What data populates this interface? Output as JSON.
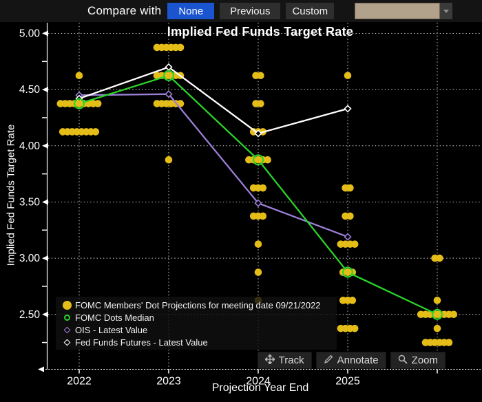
{
  "toolbar": {
    "compare_label": "Compare with",
    "buttons": [
      {
        "label": "None",
        "active": true
      },
      {
        "label": "Previous",
        "active": false
      },
      {
        "label": "Custom",
        "active": false
      }
    ],
    "accent_color": "#1a55cf",
    "dropdown_color": "#b2a18b"
  },
  "chart_data": {
    "type": "scatter",
    "title": "Implied Fed Funds Target Rate",
    "xlabel": "Projection Year End",
    "ylabel": "Implied Fed Funds Target Rate",
    "grid": true,
    "ylim": [
      2.05,
      5.09
    ],
    "x_ticks": [
      {
        "x": 2022,
        "label": "2022"
      },
      {
        "x": 2023,
        "label": "2023"
      },
      {
        "x": 2024,
        "label": "2024"
      },
      {
        "x": 2025,
        "label": "2025"
      },
      {
        "x": 2026,
        "label": ""
      }
    ],
    "y_ticks": [
      {
        "value": 5.0,
        "label": "5.00"
      },
      {
        "value": 4.5,
        "label": "4.50"
      },
      {
        "value": 4.0,
        "label": "4.00"
      },
      {
        "value": 3.5,
        "label": "3.50"
      },
      {
        "value": 3.0,
        "label": "3.00"
      },
      {
        "value": 2.5,
        "label": "2.50"
      }
    ],
    "y_minor_ticks": [
      4.75,
      4.25,
      3.75,
      3.25,
      2.75,
      2.25
    ],
    "dot_color": "#e4bd18",
    "dots": [
      {
        "x": 2022,
        "value": 4.625,
        "count": 1
      },
      {
        "x": 2022,
        "value": 4.375,
        "count": 9,
        "median": true
      },
      {
        "x": 2022,
        "value": 4.125,
        "count": 8
      },
      {
        "x": 2023,
        "value": 4.875,
        "count": 6
      },
      {
        "x": 2023,
        "value": 4.625,
        "count": 6,
        "median": true
      },
      {
        "x": 2023,
        "value": 4.375,
        "count": 6
      },
      {
        "x": 2023,
        "value": 3.875,
        "count": 1
      },
      {
        "x": 2024,
        "value": 4.625,
        "count": 2
      },
      {
        "x": 2024,
        "value": 4.375,
        "count": 2
      },
      {
        "x": 2024,
        "value": 4.125,
        "count": 3
      },
      {
        "x": 2024,
        "value": 3.875,
        "count": 5,
        "median": true
      },
      {
        "x": 2024,
        "value": 3.625,
        "count": 3
      },
      {
        "x": 2024,
        "value": 3.375,
        "count": 3
      },
      {
        "x": 2024,
        "value": 3.125,
        "count": 1
      },
      {
        "x": 2024,
        "value": 2.875,
        "count": 1
      },
      {
        "x": 2024,
        "value": 2.625,
        "count": 1
      },
      {
        "x": 2025,
        "value": 4.625,
        "count": 1
      },
      {
        "x": 2025,
        "value": 3.625,
        "count": 2
      },
      {
        "x": 2025,
        "value": 3.375,
        "count": 2
      },
      {
        "x": 2025,
        "value": 3.125,
        "count": 4
      },
      {
        "x": 2025,
        "value": 2.875,
        "count": 3,
        "median": true
      },
      {
        "x": 2025,
        "value": 2.625,
        "count": 3
      },
      {
        "x": 2025,
        "value": 2.375,
        "count": 4
      },
      {
        "x": 2026,
        "value": 3.0,
        "count": 2
      },
      {
        "x": 2026,
        "value": 2.625,
        "count": 1
      },
      {
        "x": 2026,
        "value": 2.5,
        "count": 8,
        "median": true
      },
      {
        "x": 2026,
        "value": 2.375,
        "count": 1
      },
      {
        "x": 2026,
        "value": 2.25,
        "count": 6
      }
    ],
    "series": [
      {
        "name": "OIS - Latest Value",
        "color": "#9b7fd6",
        "marker": "diamond",
        "points": [
          [
            2022,
            4.45
          ],
          [
            2023,
            4.46
          ],
          [
            2024,
            3.49
          ],
          [
            2025,
            3.19
          ]
        ]
      },
      {
        "name": "Fed Funds Futures - Latest Value",
        "color": "#ffffff",
        "marker": "diamond",
        "points": [
          [
            2022,
            4.42
          ],
          [
            2023,
            4.7
          ],
          [
            2024,
            4.11
          ],
          [
            2025,
            4.33
          ]
        ]
      },
      {
        "name": "FOMC Dots Median",
        "color": "#2bd42b",
        "marker": "circle-median",
        "points": [
          [
            2022,
            4.375
          ],
          [
            2023,
            4.625
          ],
          [
            2024,
            3.875
          ],
          [
            2025,
            2.875
          ],
          [
            2026,
            2.5
          ]
        ]
      }
    ]
  },
  "legend": {
    "items": [
      {
        "marker": "dot-filled",
        "color": "#e4bd18",
        "label": "FOMC Members' Dot Projections for meeting date 09/21/2022"
      },
      {
        "marker": "circle-open",
        "color": "#2bd42b",
        "label": "FOMC Dots Median"
      },
      {
        "marker": "diamond-open",
        "color": "#9b7fd6",
        "label": "OIS - Latest Value"
      },
      {
        "marker": "diamond-open",
        "color": "#ffffff",
        "label": "Fed Funds Futures - Latest Value"
      }
    ]
  },
  "actions": [
    {
      "label": "Track",
      "icon": "track-icon"
    },
    {
      "label": "Annotate",
      "icon": "annotate-icon"
    },
    {
      "label": "Zoom",
      "icon": "zoom-icon"
    }
  ]
}
